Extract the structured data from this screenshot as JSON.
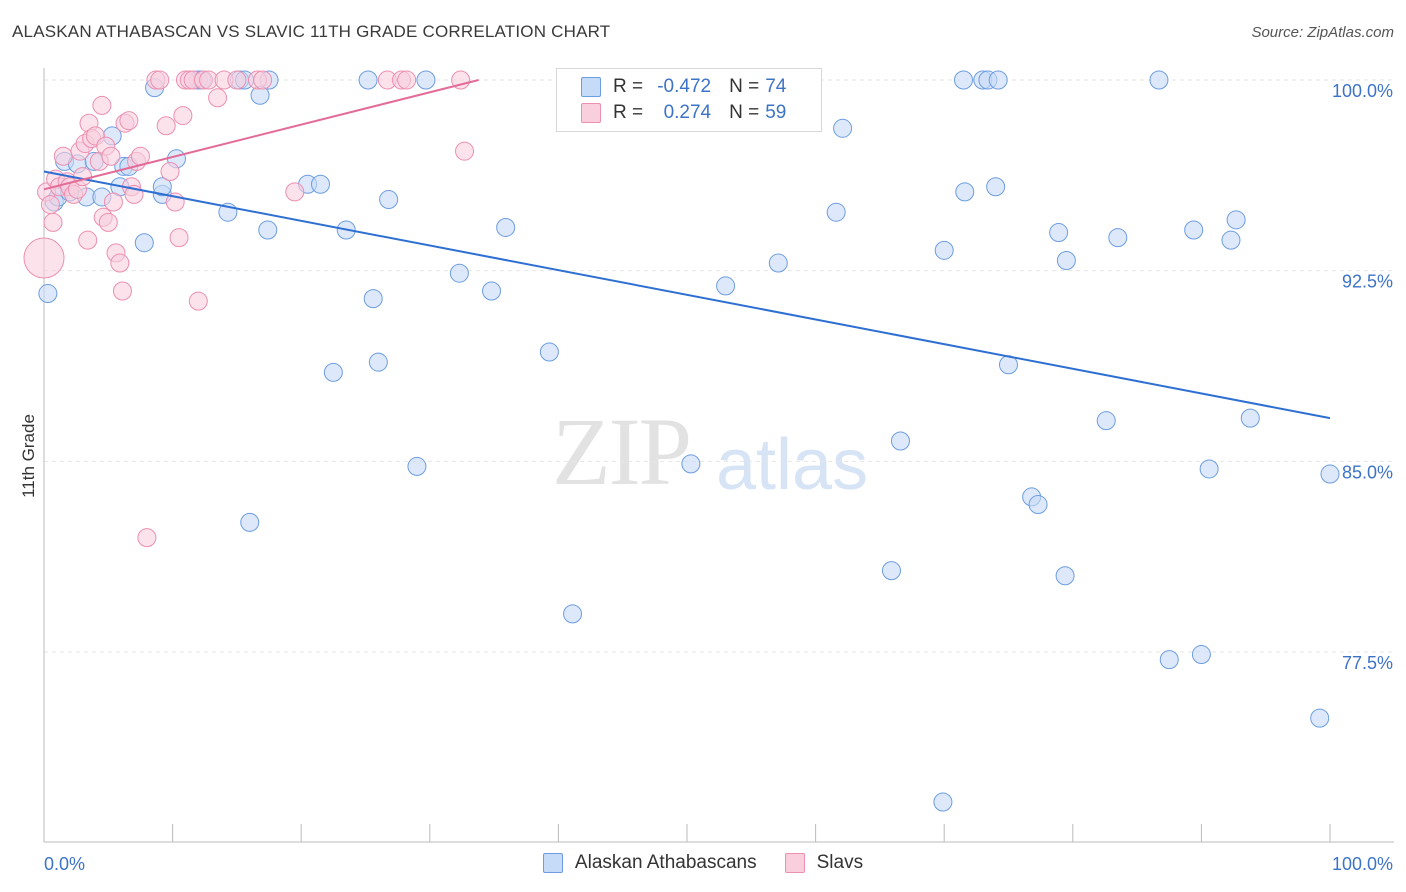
{
  "title": "ALASKAN ATHABASCAN VS SLAVIC 11TH GRADE CORRELATION CHART",
  "source": "Source: ZipAtlas.com",
  "watermark": {
    "zip": "ZIP",
    "atlas": "atlas"
  },
  "legend": {
    "rows": [
      {
        "r_label": "R =",
        "r_value": "-0.472",
        "n_label": "N =",
        "n_value": "74"
      },
      {
        "r_label": "R =",
        "r_value": "0.274",
        "n_label": "N =",
        "n_value": "59"
      }
    ]
  },
  "bottom_legend": [
    "Alaskan Athabascans",
    "Slavs"
  ],
  "colors": {
    "blue_fill": "#c6dbf7",
    "blue_stroke": "#6d9de0",
    "blue_line": "#2e6fd2",
    "pink_fill": "#f9cfdd",
    "pink_stroke": "#ec8fb0",
    "pink_line": "#e36b97",
    "grid": "#e6e6e6",
    "tick_text": "#3d73c7"
  },
  "chart_data": {
    "type": "scatter",
    "title": "ALASKAN ATHABASCAN VS SLAVIC 11TH GRADE CORRELATION CHART",
    "xlabel": "",
    "ylabel": "11th Grade",
    "xlim": [
      0,
      100
    ],
    "ylim": [
      70.5,
      101.2
    ],
    "x_tick_labels": [
      "0.0%",
      "100.0%"
    ],
    "y_ticks": [
      77.5,
      85.0,
      92.5,
      100.0
    ],
    "y_tick_labels": [
      "77.5%",
      "85.0%",
      "92.5%",
      "100.0%"
    ],
    "grid": true,
    "series": [
      {
        "name": "Alaskan Athabascans",
        "trend": {
          "x": [
            0,
            100
          ],
          "y": [
            96.4,
            86.7
          ]
        },
        "points": [
          [
            0.3,
            91.6
          ],
          [
            0.8,
            95.2
          ],
          [
            1.1,
            95.4
          ],
          [
            1.6,
            96.8
          ],
          [
            2.0,
            95.6
          ],
          [
            2.6,
            96.7
          ],
          [
            3.3,
            95.4
          ],
          [
            3.9,
            96.8
          ],
          [
            4.5,
            95.4
          ],
          [
            5.3,
            97.8
          ],
          [
            5.9,
            95.8
          ],
          [
            6.2,
            96.6
          ],
          [
            6.6,
            96.6
          ],
          [
            7.8,
            93.6
          ],
          [
            8.6,
            99.7
          ],
          [
            9.2,
            95.5
          ],
          [
            9.2,
            95.8
          ],
          [
            10.3,
            96.9
          ],
          [
            12.0,
            100.0
          ],
          [
            12.3,
            100.0
          ],
          [
            14.3,
            94.8
          ],
          [
            15.2,
            100.0
          ],
          [
            15.6,
            100.0
          ],
          [
            16.0,
            82.6
          ],
          [
            16.8,
            99.4
          ],
          [
            17.5,
            100.0
          ],
          [
            17.4,
            94.1
          ],
          [
            20.5,
            95.9
          ],
          [
            21.5,
            95.9
          ],
          [
            22.5,
            88.5
          ],
          [
            23.5,
            94.1
          ],
          [
            25.2,
            100.0
          ],
          [
            25.6,
            91.4
          ],
          [
            26.0,
            88.9
          ],
          [
            26.8,
            95.3
          ],
          [
            29.0,
            84.8
          ],
          [
            29.7,
            100.0
          ],
          [
            32.3,
            92.4
          ],
          [
            34.8,
            91.7
          ],
          [
            35.9,
            94.2
          ],
          [
            39.3,
            89.3
          ],
          [
            41.1,
            79.0
          ],
          [
            50.3,
            84.9
          ],
          [
            53.0,
            91.9
          ],
          [
            57.1,
            92.8
          ],
          [
            61.6,
            94.8
          ],
          [
            62.1,
            98.1
          ],
          [
            65.9,
            80.7
          ],
          [
            66.6,
            85.8
          ],
          [
            69.9,
            71.6
          ],
          [
            70.0,
            93.3
          ],
          [
            71.5,
            100.0
          ],
          [
            71.6,
            95.6
          ],
          [
            73.0,
            100.0
          ],
          [
            73.4,
            100.0
          ],
          [
            74.2,
            100.0
          ],
          [
            74.0,
            95.8
          ],
          [
            75.0,
            88.8
          ],
          [
            76.8,
            83.6
          ],
          [
            77.3,
            83.3
          ],
          [
            78.9,
            94.0
          ],
          [
            79.4,
            80.5
          ],
          [
            79.5,
            92.9
          ],
          [
            82.6,
            86.6
          ],
          [
            83.5,
            93.8
          ],
          [
            86.7,
            100.0
          ],
          [
            87.5,
            77.2
          ],
          [
            89.4,
            94.1
          ],
          [
            90.0,
            77.4
          ],
          [
            90.6,
            84.7
          ],
          [
            92.3,
            93.7
          ],
          [
            92.7,
            94.5
          ],
          [
            93.8,
            86.7
          ],
          [
            99.2,
            74.9
          ],
          [
            100.0,
            84.5
          ]
        ]
      },
      {
        "name": "Slavs",
        "trend": {
          "x": [
            0,
            33.8
          ],
          "y": [
            95.7,
            100.0
          ]
        },
        "points": [
          [
            0.0,
            93.0
          ],
          [
            0.2,
            95.6
          ],
          [
            0.5,
            95.1
          ],
          [
            0.7,
            94.4
          ],
          [
            0.9,
            96.1
          ],
          [
            1.2,
            95.8
          ],
          [
            1.5,
            97.0
          ],
          [
            1.8,
            96.0
          ],
          [
            2.0,
            95.8
          ],
          [
            2.3,
            95.5
          ],
          [
            2.6,
            95.7
          ],
          [
            2.8,
            97.2
          ],
          [
            3.0,
            96.2
          ],
          [
            3.2,
            97.5
          ],
          [
            3.5,
            98.3
          ],
          [
            3.4,
            93.7
          ],
          [
            3.7,
            97.7
          ],
          [
            4.0,
            97.8
          ],
          [
            4.3,
            96.8
          ],
          [
            4.5,
            99.0
          ],
          [
            4.6,
            94.6
          ],
          [
            4.8,
            97.4
          ],
          [
            5.0,
            94.4
          ],
          [
            5.2,
            97.0
          ],
          [
            5.4,
            95.2
          ],
          [
            5.6,
            93.2
          ],
          [
            5.9,
            92.8
          ],
          [
            6.1,
            91.7
          ],
          [
            6.3,
            98.3
          ],
          [
            6.6,
            98.4
          ],
          [
            6.8,
            95.8
          ],
          [
            7.0,
            95.5
          ],
          [
            7.2,
            96.8
          ],
          [
            7.5,
            97.0
          ],
          [
            8.0,
            82.0
          ],
          [
            8.7,
            100.0
          ],
          [
            9.0,
            100.0
          ],
          [
            9.5,
            98.2
          ],
          [
            9.8,
            96.4
          ],
          [
            10.2,
            95.2
          ],
          [
            10.5,
            93.8
          ],
          [
            10.8,
            98.6
          ],
          [
            11.0,
            100.0
          ],
          [
            11.3,
            100.0
          ],
          [
            11.6,
            100.0
          ],
          [
            12.0,
            91.3
          ],
          [
            12.4,
            100.0
          ],
          [
            12.8,
            100.0
          ],
          [
            13.5,
            99.3
          ],
          [
            14.0,
            100.0
          ],
          [
            15.0,
            100.0
          ],
          [
            16.6,
            100.0
          ],
          [
            17.0,
            100.0
          ],
          [
            19.5,
            95.6
          ],
          [
            26.7,
            100.0
          ],
          [
            27.8,
            100.0
          ],
          [
            28.2,
            100.0
          ],
          [
            32.4,
            100.0
          ],
          [
            32.7,
            97.2
          ]
        ]
      }
    ]
  }
}
